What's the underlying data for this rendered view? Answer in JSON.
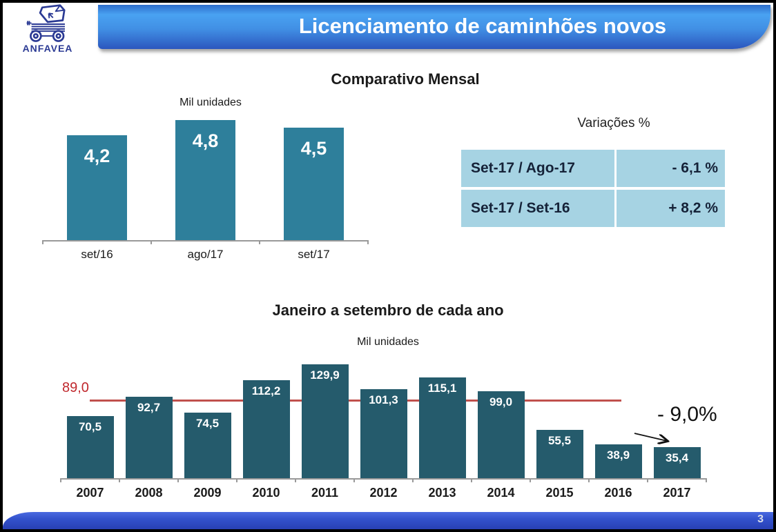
{
  "logo": {
    "text": "ANFAVEA"
  },
  "header": {
    "title": "Licenciamento de caminhões novos"
  },
  "footer": {
    "page_number": "3"
  },
  "variations": {
    "title": "Variações %",
    "rows": [
      {
        "label": "Set-17 / Ago-17",
        "value": "- 6,1 %"
      },
      {
        "label": "Set-17 / Set-16",
        "value": "+ 8,2 %"
      }
    ]
  },
  "chart_data": [
    {
      "type": "bar",
      "title": "Comparativo Mensal",
      "unit_label": "Mil unidades",
      "categories": [
        "set/16",
        "ago/17",
        "set/17"
      ],
      "values": [
        4.2,
        4.8,
        4.5
      ],
      "value_labels": [
        "4,2",
        "4,8",
        "4,5"
      ],
      "bar_color": "#2E7F9B",
      "ylim": [
        0,
        5.5
      ],
      "grid": false,
      "legend": false,
      "data_labels": "inside-top-white-bold"
    },
    {
      "type": "bar",
      "title": "Janeiro a setembro de cada ano",
      "unit_label": "Mil unidades",
      "categories": [
        "2007",
        "2008",
        "2009",
        "2010",
        "2011",
        "2012",
        "2013",
        "2014",
        "2015",
        "2016",
        "2017"
      ],
      "values": [
        70.5,
        92.7,
        74.5,
        112.2,
        129.9,
        101.3,
        115.1,
        99.0,
        55.5,
        38.9,
        35.4
      ],
      "value_labels": [
        "70,5",
        "92,7",
        "74,5",
        "112,2",
        "129,9",
        "101,3",
        "115,1",
        "99,0",
        "55,5",
        "38,9",
        "35,4"
      ],
      "bar_color": "#255B6C",
      "ylim": [
        0,
        136
      ],
      "grid": false,
      "legend": false,
      "data_labels": "inside-top-white-bold",
      "reference_line": {
        "value": 89.0,
        "label": "89,0",
        "color": "#C0504D"
      },
      "annotation": {
        "text": "- 9,0%"
      }
    }
  ]
}
